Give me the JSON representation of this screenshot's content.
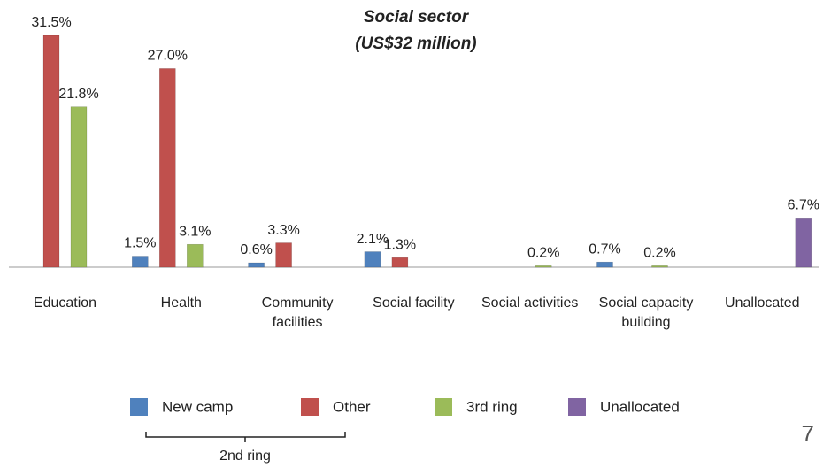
{
  "chart_data": {
    "type": "bar",
    "title": "Social sector",
    "subtitle": "(US$32 million)",
    "categories": [
      "Education",
      "Health",
      "Community facilities",
      "Social facility",
      "Social activities",
      "Social capacity building",
      "Unallocated"
    ],
    "series": [
      {
        "name": "New camp",
        "color": "#4f81bd",
        "values": [
          null,
          1.5,
          0.6,
          2.1,
          null,
          0.7,
          null
        ],
        "value_labels": [
          null,
          "1.5%",
          "0.6%",
          "2.1%",
          null,
          "0.7%",
          null
        ]
      },
      {
        "name": "Other",
        "color": "#c0504d",
        "values": [
          31.5,
          27.0,
          3.3,
          1.3,
          null,
          null,
          null
        ],
        "value_labels": [
          "31.5%",
          "27.0%",
          "3.3%",
          "1.3%",
          null,
          null,
          null
        ]
      },
      {
        "name": "3rd ring",
        "color": "#9bbb59",
        "values": [
          21.8,
          3.1,
          null,
          null,
          0.2,
          0.2,
          null
        ],
        "value_labels": [
          "21.8%",
          "3.1%",
          null,
          null,
          "0.2%",
          "0.2%",
          null
        ]
      },
      {
        "name": "Unallocated",
        "color": "#8064a2",
        "values": [
          null,
          null,
          null,
          null,
          null,
          null,
          6.7
        ],
        "value_labels": [
          null,
          null,
          null,
          null,
          null,
          null,
          "6.7%"
        ]
      }
    ],
    "annotation": "2nd ring",
    "page_number": "7"
  }
}
